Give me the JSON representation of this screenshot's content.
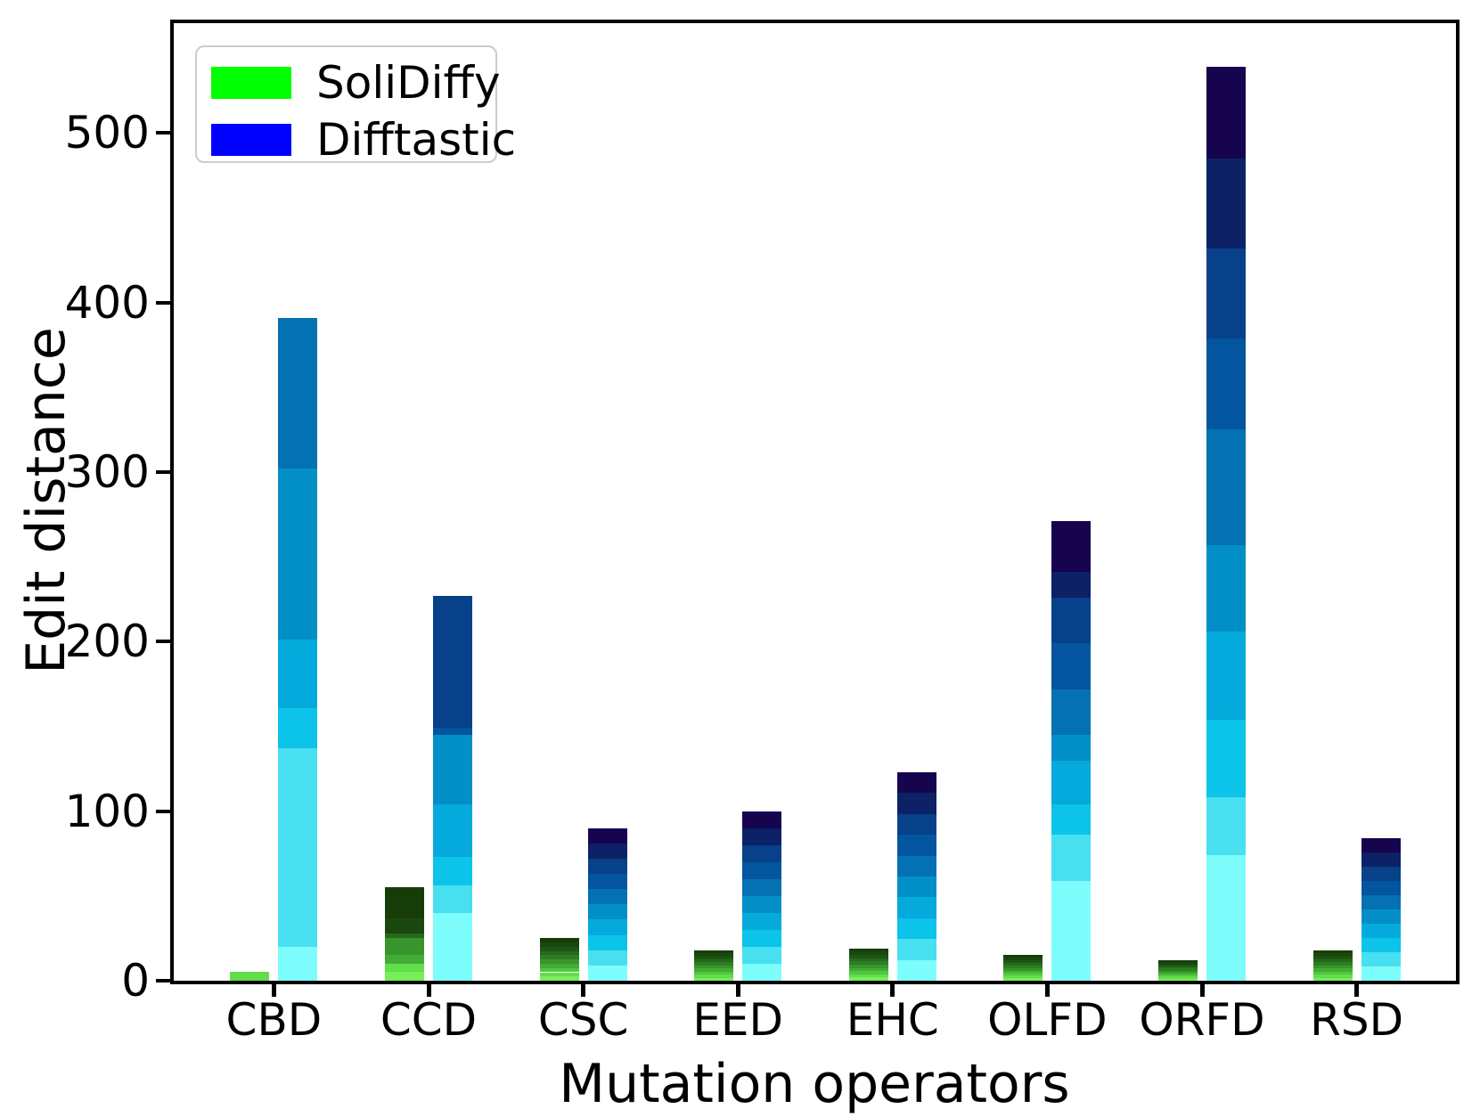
{
  "chart_data": {
    "type": "bar",
    "stacked": true,
    "title": "",
    "xlabel": "Mutation operators",
    "ylabel": "Edit distance",
    "yticks": [
      0,
      100,
      200,
      300,
      400,
      500
    ],
    "ylim": [
      0,
      565
    ],
    "grid": false,
    "legend_position": "upper left",
    "categories": [
      "CBD",
      "CCD",
      "CSC",
      "EED",
      "EHC",
      "OLFD",
      "ORFD",
      "RSD"
    ],
    "series": [
      {
        "name": "SoliDiffy",
        "legend_color": "#00ff00",
        "ramp": [
          "#76ef5a",
          "#62dd4c",
          "#50c63e",
          "#42ad34",
          "#38952c",
          "#2e7d24",
          "#256a1b",
          "#1e5614",
          "#1a470e",
          "#163d08"
        ],
        "totals": [
          5,
          55,
          25,
          18,
          19,
          15,
          12,
          18
        ],
        "bars": [
          [
            [
              5,
              1
            ]
          ],
          [
            [
              5,
              0
            ],
            [
              5,
              1
            ],
            [
              5,
              3
            ],
            [
              10,
              4
            ],
            [
              3,
              6
            ],
            [
              9,
              8
            ],
            [
              18,
              9
            ]
          ],
          [
            [
              2.5,
              0
            ],
            [
              2.5,
              1
            ],
            [
              2.5,
              2
            ],
            [
              2.5,
              3
            ],
            [
              2.5,
              4
            ],
            [
              2.5,
              5
            ],
            [
              2.5,
              6
            ],
            [
              2.5,
              7
            ],
            [
              2.5,
              8
            ],
            [
              2.5,
              9
            ]
          ],
          [
            [
              1.8,
              0
            ],
            [
              1.8,
              1
            ],
            [
              1.8,
              2
            ],
            [
              1.8,
              3
            ],
            [
              1.8,
              4
            ],
            [
              1.8,
              5
            ],
            [
              1.8,
              6
            ],
            [
              1.8,
              7
            ],
            [
              1.8,
              8
            ],
            [
              1.8,
              9
            ]
          ],
          [
            [
              1.9,
              0
            ],
            [
              1.9,
              1
            ],
            [
              1.9,
              2
            ],
            [
              1.9,
              3
            ],
            [
              1.9,
              4
            ],
            [
              1.9,
              5
            ],
            [
              1.9,
              6
            ],
            [
              1.9,
              7
            ],
            [
              1.9,
              8
            ],
            [
              1.9,
              9
            ]
          ],
          [
            [
              1.5,
              0
            ],
            [
              1.5,
              1
            ],
            [
              1.5,
              2
            ],
            [
              1.5,
              3
            ],
            [
              1.5,
              4
            ],
            [
              1.5,
              5
            ],
            [
              1.5,
              6
            ],
            [
              1.5,
              7
            ],
            [
              1.5,
              8
            ],
            [
              1.5,
              9
            ]
          ],
          [
            [
              1.2,
              0
            ],
            [
              1.2,
              1
            ],
            [
              1.2,
              2
            ],
            [
              1.2,
              3
            ],
            [
              1.2,
              4
            ],
            [
              1.2,
              5
            ],
            [
              1.2,
              6
            ],
            [
              1.2,
              7
            ],
            [
              1.2,
              8
            ],
            [
              1.2,
              9
            ]
          ],
          [
            [
              1.8,
              0
            ],
            [
              1.8,
              1
            ],
            [
              1.8,
              2
            ],
            [
              1.8,
              3
            ],
            [
              1.8,
              4
            ],
            [
              1.8,
              5
            ],
            [
              1.8,
              6
            ],
            [
              1.8,
              7
            ],
            [
              1.8,
              8
            ],
            [
              1.8,
              9
            ]
          ]
        ]
      },
      {
        "name": "Difftastic",
        "legend_color": "#0000ff",
        "ramp": [
          "#7dfdfc",
          "#48dff1",
          "#0cc3e9",
          "#04aadb",
          "#028fc7",
          "#0371b2",
          "#02559e",
          "#06418a",
          "#0c2166",
          "#16054e"
        ],
        "totals": [
          391,
          227,
          90,
          100,
          123,
          271,
          539,
          84
        ],
        "bars": [
          [
            [
              20,
              0
            ],
            [
              117,
              1
            ],
            [
              24,
              2
            ],
            [
              40,
              3
            ],
            [
              101,
              4
            ],
            [
              89,
              5
            ]
          ],
          [
            [
              40,
              0
            ],
            [
              16,
              1
            ],
            [
              17,
              2
            ],
            [
              31,
              3
            ],
            [
              41,
              4
            ],
            [
              4,
              6
            ],
            [
              78,
              7
            ]
          ],
          [
            [
              9,
              0
            ],
            [
              9,
              1
            ],
            [
              9,
              2
            ],
            [
              9,
              3
            ],
            [
              9,
              4
            ],
            [
              9,
              5
            ],
            [
              9,
              6
            ],
            [
              9,
              7
            ],
            [
              9,
              8
            ],
            [
              9,
              9
            ]
          ],
          [
            [
              10,
              0
            ],
            [
              10,
              1
            ],
            [
              10,
              2
            ],
            [
              10,
              3
            ],
            [
              10,
              4
            ],
            [
              10,
              5
            ],
            [
              10,
              6
            ],
            [
              10,
              7
            ],
            [
              10,
              8
            ],
            [
              10,
              9
            ]
          ],
          [
            [
              12.3,
              0
            ],
            [
              12.3,
              1
            ],
            [
              12.3,
              2
            ],
            [
              12.3,
              3
            ],
            [
              12.3,
              4
            ],
            [
              12.3,
              5
            ],
            [
              12.3,
              6
            ],
            [
              12.3,
              7
            ],
            [
              12.3,
              8
            ],
            [
              12.3,
              9
            ]
          ],
          [
            [
              59,
              0
            ],
            [
              27,
              1
            ],
            [
              18,
              2
            ],
            [
              26,
              3
            ],
            [
              15,
              4
            ],
            [
              27,
              5
            ],
            [
              27,
              6
            ],
            [
              27,
              7
            ],
            [
              15,
              8
            ],
            [
              30,
              9
            ]
          ],
          [
            [
              74,
              0
            ],
            [
              34,
              1
            ],
            [
              46,
              2
            ],
            [
              52,
              3
            ],
            [
              51,
              4
            ],
            [
              68,
              5
            ],
            [
              54,
              6
            ],
            [
              53,
              7
            ],
            [
              53,
              8
            ],
            [
              54,
              9
            ]
          ],
          [
            [
              8.4,
              0
            ],
            [
              8.4,
              1
            ],
            [
              8.4,
              2
            ],
            [
              8.4,
              3
            ],
            [
              8.4,
              4
            ],
            [
              8.4,
              5
            ],
            [
              8.4,
              6
            ],
            [
              8.4,
              7
            ],
            [
              8.4,
              8
            ],
            [
              8.4,
              9
            ]
          ]
        ]
      }
    ]
  }
}
